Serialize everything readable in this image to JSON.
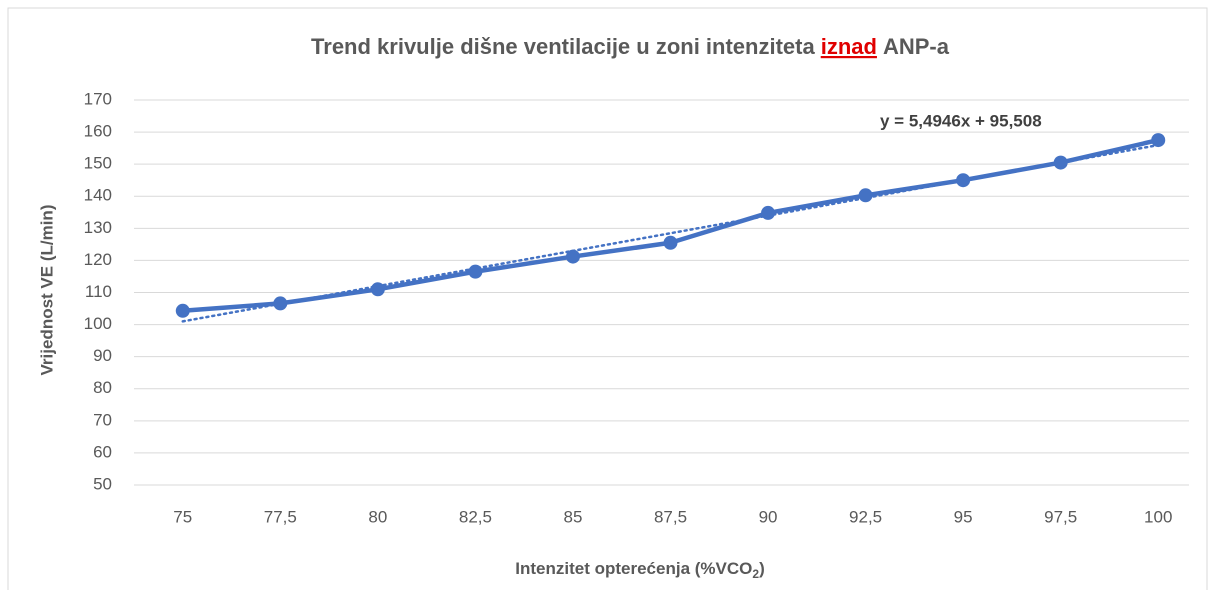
{
  "chart_data": {
    "type": "line",
    "title": [
      "Trend krivulje dišne ventilacije u zoni intenziteta",
      "iznad",
      "ANP-a"
    ],
    "x_label": [
      "Intenzitet opterećenja (%VCO",
      "2",
      ")"
    ],
    "y_label": "Vrijednost VE (L/min)",
    "categories": [
      "75",
      "77,5",
      "80",
      "82,5",
      "85",
      "87,5",
      "90",
      "92,5",
      "95",
      "97,5",
      "100"
    ],
    "series": [
      {
        "name": "VE",
        "color": "#4472c4",
        "values": [
          104.3,
          106.6,
          111,
          116.5,
          121.2,
          125.5,
          134.8,
          140.3,
          145,
          150.5,
          157.5
        ]
      }
    ],
    "trendline": {
      "slope": 5.4946,
      "intercept": 95.508,
      "label": "y = 5,4946x + 95,508",
      "color": "#4472c4"
    },
    "ylim": [
      50,
      170
    ],
    "yticks": [
      50,
      60,
      70,
      80,
      90,
      100,
      110,
      120,
      130,
      140,
      150,
      160,
      170
    ],
    "grid": true
  }
}
